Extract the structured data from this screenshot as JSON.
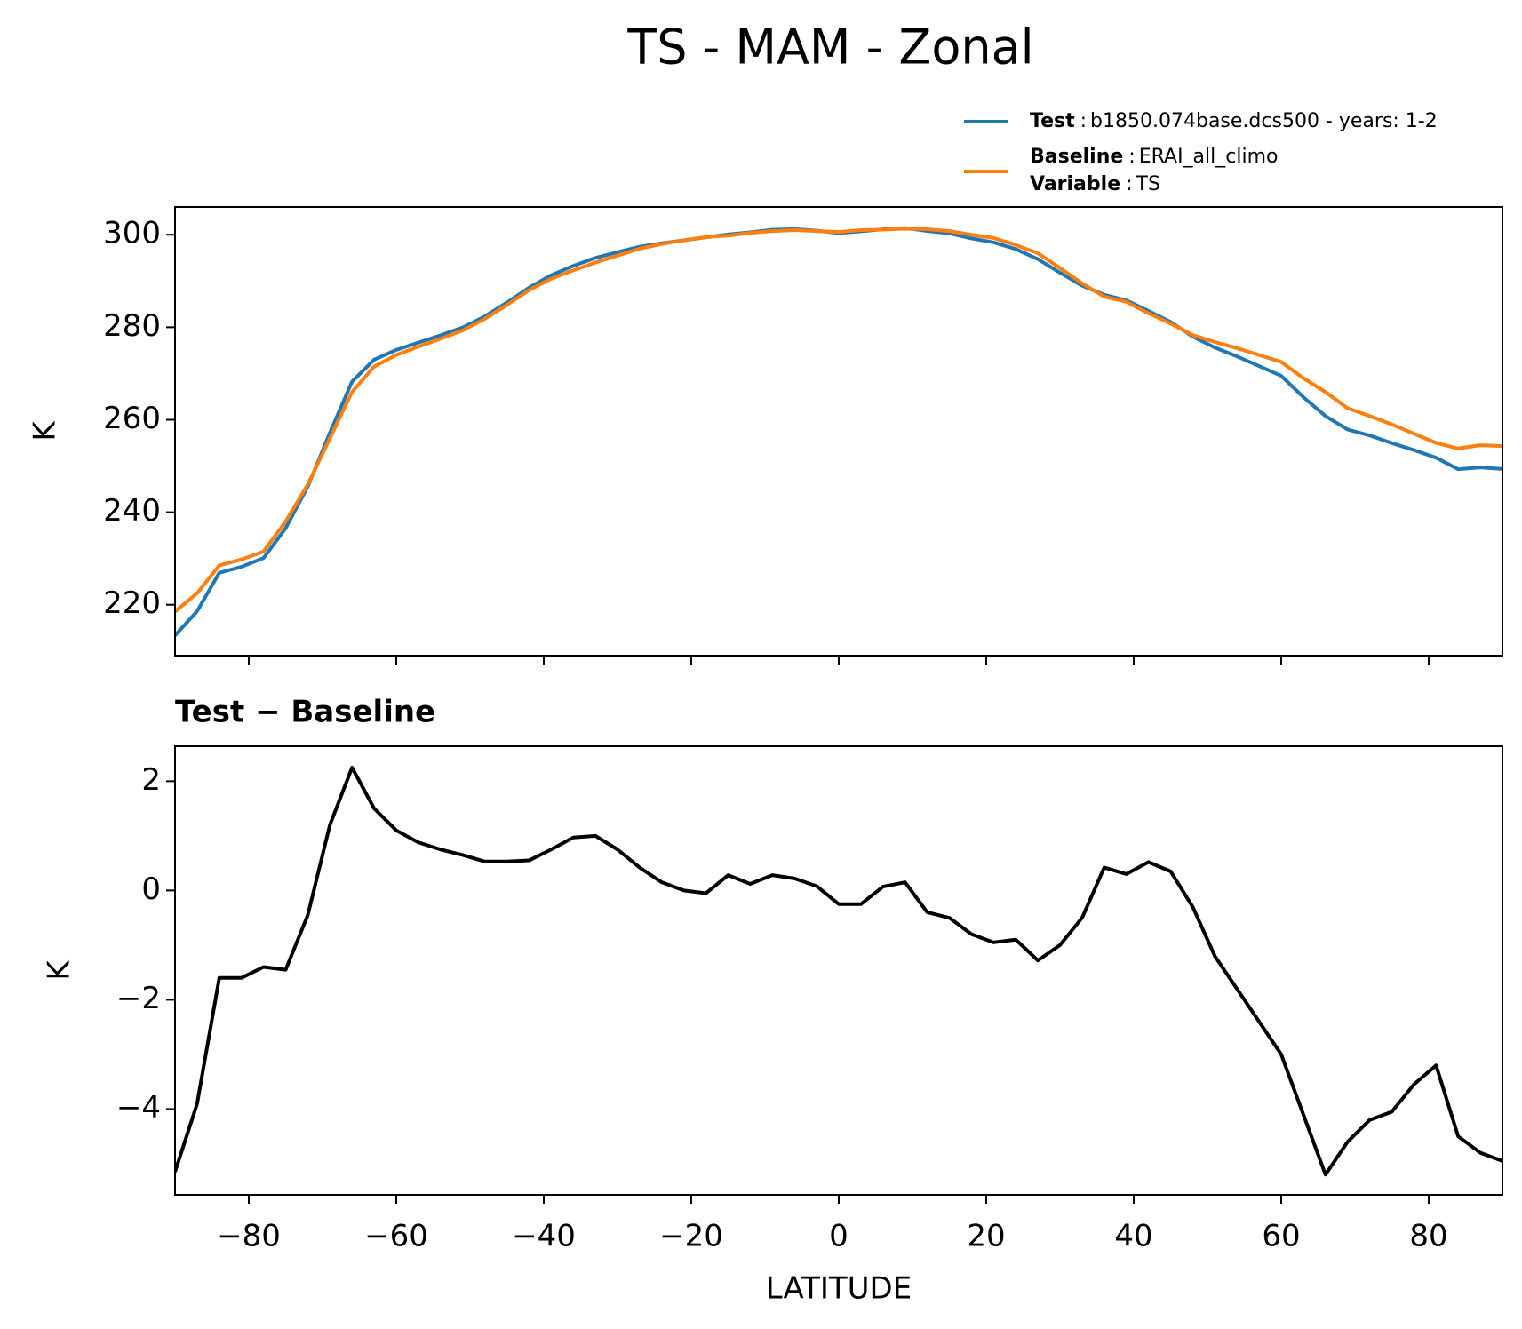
{
  "chart_data": [
    {
      "type": "line",
      "title": "TS - MAM - Zonal",
      "ylabel": "K",
      "separator": ":",
      "x": [
        -90,
        -87,
        -84,
        -81,
        -78,
        -75,
        -72,
        -69,
        -66,
        -63,
        -60,
        -57,
        -54,
        -51,
        -48,
        -45,
        -42,
        -39,
        -36,
        -33,
        -30,
        -27,
        -24,
        -21,
        -18,
        -15,
        -12,
        -9,
        -6,
        -3,
        0,
        3,
        6,
        9,
        12,
        15,
        18,
        21,
        24,
        27,
        30,
        33,
        36,
        39,
        42,
        45,
        48,
        51,
        54,
        57,
        60,
        63,
        66,
        69,
        72,
        75,
        78,
        81,
        84,
        87,
        90
      ],
      "series": [
        {
          "name": "Test",
          "label": "b1850.074base.dcs500 - years: 1-2",
          "color": "#1f77b4",
          "values": [
            213.35,
            218.6,
            226.9,
            228.2,
            230.1,
            236.55,
            245.55,
            257.2,
            268.25,
            273,
            275.1,
            276.68,
            278.25,
            279.95,
            282.33,
            285.33,
            288.55,
            291.25,
            293.27,
            295,
            296.25,
            297.42,
            298.15,
            298.8,
            299.45,
            300.08,
            300.52,
            301.08,
            301.22,
            300.88,
            300.35,
            300.75,
            301.17,
            301.45,
            300.8,
            300.3,
            299.2,
            298.35,
            296.9,
            294.72,
            291.8,
            289,
            287.02,
            285.8,
            283.52,
            281.15,
            278,
            275.6,
            273.7,
            271.6,
            269.5,
            264.9,
            260.8,
            257.9,
            256.6,
            254.95,
            253.45,
            251.8,
            249.3,
            249.7,
            249.35
          ]
        },
        {
          "name": "Baseline",
          "label": "ERAI_all_climo",
          "color": "#ff7f0e",
          "values": [
            218.5,
            222.5,
            228.5,
            229.8,
            231.5,
            238,
            246,
            256,
            266,
            271.5,
            274,
            275.8,
            277.5,
            279.3,
            281.8,
            284.8,
            288,
            290.5,
            292.3,
            294,
            295.5,
            297,
            298,
            298.8,
            299.5,
            299.8,
            300.4,
            300.8,
            301,
            300.8,
            300.6,
            301,
            301.1,
            301.3,
            301.2,
            300.8,
            300,
            299.3,
            297.8,
            296,
            292.8,
            289.5,
            286.6,
            285.5,
            283,
            280.8,
            278.3,
            276.8,
            275.5,
            274,
            272.5,
            269,
            266,
            262.5,
            260.8,
            259,
            257,
            255,
            253.8,
            254.5,
            254.3
          ]
        }
      ],
      "variable": {
        "name": "Variable",
        "label": "TS"
      },
      "xlim": [
        -90,
        90
      ],
      "xticks": [
        -80,
        -60,
        -40,
        -20,
        0,
        20,
        40,
        60,
        80
      ],
      "show_xtick_labels": false,
      "ylim": [
        209,
        306
      ],
      "yticks": [
        220,
        240,
        260,
        280,
        300
      ]
    },
    {
      "type": "line",
      "title": "Test − Baseline",
      "ylabel": "K",
      "xlabel": "LATITUDE",
      "color": "#000000",
      "x": [
        -90,
        -87,
        -84,
        -81,
        -78,
        -75,
        -72,
        -69,
        -66,
        -63,
        -60,
        -57,
        -54,
        -51,
        -48,
        -45,
        -42,
        -39,
        -36,
        -33,
        -30,
        -27,
        -24,
        -21,
        -18,
        -15,
        -12,
        -9,
        -6,
        -3,
        0,
        3,
        6,
        9,
        12,
        15,
        18,
        21,
        24,
        27,
        30,
        33,
        36,
        39,
        42,
        45,
        48,
        51,
        54,
        57,
        60,
        63,
        66,
        69,
        72,
        75,
        78,
        81,
        84,
        87,
        90
      ],
      "values": [
        -5.15,
        -3.9,
        -1.6,
        -1.6,
        -1.4,
        -1.45,
        -0.45,
        1.2,
        2.25,
        1.5,
        1.1,
        0.88,
        0.75,
        0.65,
        0.53,
        0.53,
        0.55,
        0.75,
        0.97,
        1.0,
        0.75,
        0.42,
        0.15,
        0.0,
        -0.05,
        0.28,
        0.12,
        0.28,
        0.22,
        0.08,
        -0.25,
        -0.25,
        0.07,
        0.15,
        -0.4,
        -0.5,
        -0.8,
        -0.95,
        -0.9,
        -1.28,
        -1.0,
        -0.5,
        0.42,
        0.3,
        0.52,
        0.35,
        -0.3,
        -1.2,
        -1.8,
        -2.4,
        -3.0,
        -4.1,
        -5.2,
        -4.6,
        -4.2,
        -4.05,
        -3.55,
        -3.2,
        -4.5,
        -4.8,
        -4.95
      ],
      "xlim": [
        -90,
        90
      ],
      "xticks": [
        {
          "value": -80,
          "label": "−80"
        },
        {
          "value": -60,
          "label": "−60"
        },
        {
          "value": -40,
          "label": "−40"
        },
        {
          "value": -20,
          "label": "−20"
        },
        0,
        20,
        40,
        60,
        80
      ],
      "show_xtick_labels": true,
      "ylim": [
        -5.57,
        2.64
      ],
      "yticks": [
        {
          "value": -4,
          "label": "−4"
        },
        {
          "value": -2,
          "label": "−2"
        },
        0,
        2
      ]
    }
  ]
}
